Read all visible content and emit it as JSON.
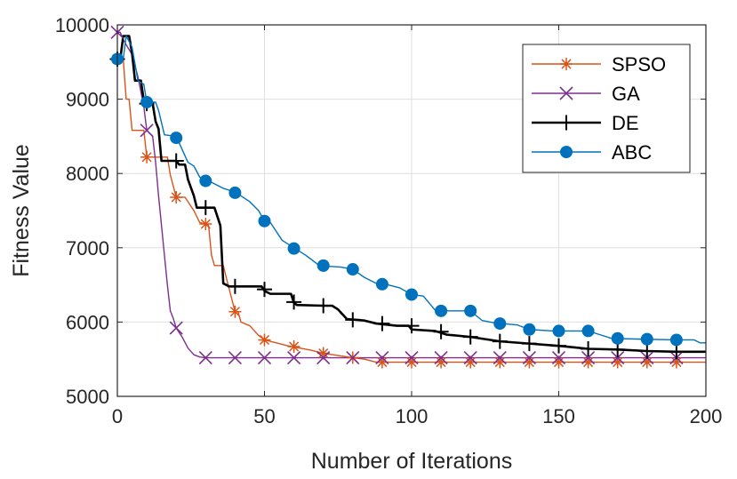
{
  "chart_data": {
    "type": "line",
    "title": "",
    "xlabel": "Number of Iterations",
    "ylabel": "Fitness Value",
    "xlim": [
      0,
      200
    ],
    "ylim": [
      5000,
      10000
    ],
    "xticks": [
      0,
      50,
      100,
      150,
      200
    ],
    "yticks": [
      5000,
      6000,
      7000,
      8000,
      9000,
      10000
    ],
    "xtick_labels": [
      "0",
      "50",
      "100",
      "150",
      "200"
    ],
    "ytick_labels": [
      "5000",
      "6000",
      "7000",
      "8000",
      "9000",
      "10000"
    ],
    "grid": true,
    "legend_position": "top-right",
    "series": [
      {
        "name": "SPSO",
        "color": "#D95319",
        "marker": "asterisk",
        "line": [
          [
            0,
            9540
          ],
          [
            2,
            9540
          ],
          [
            3,
            9000
          ],
          [
            4,
            9000
          ],
          [
            5,
            8580
          ],
          [
            9,
            8580
          ],
          [
            10,
            8220
          ],
          [
            17,
            8220
          ],
          [
            18,
            7980
          ],
          [
            20,
            7680
          ],
          [
            23,
            7680
          ],
          [
            26,
            7500
          ],
          [
            28,
            7340
          ],
          [
            30,
            7320
          ],
          [
            31,
            7300
          ],
          [
            32,
            6900
          ],
          [
            33,
            6760
          ],
          [
            36,
            6760
          ],
          [
            37,
            6600
          ],
          [
            40,
            6140
          ],
          [
            41,
            6140
          ],
          [
            42,
            6000
          ],
          [
            45,
            5950
          ],
          [
            48,
            5820
          ],
          [
            50,
            5760
          ],
          [
            54,
            5720
          ],
          [
            58,
            5680
          ],
          [
            62,
            5650
          ],
          [
            66,
            5620
          ],
          [
            70,
            5580
          ],
          [
            75,
            5550
          ],
          [
            80,
            5520
          ],
          [
            84,
            5500
          ],
          [
            88,
            5460
          ],
          [
            200,
            5460
          ]
        ],
        "markers": [
          [
            0,
            9540
          ],
          [
            10,
            8220
          ],
          [
            20,
            7680
          ],
          [
            30,
            7320
          ],
          [
            40,
            6140
          ],
          [
            50,
            5760
          ],
          [
            60,
            5670
          ],
          [
            70,
            5580
          ],
          [
            80,
            5520
          ],
          [
            90,
            5460
          ],
          [
            100,
            5460
          ],
          [
            110,
            5460
          ],
          [
            120,
            5460
          ],
          [
            130,
            5460
          ],
          [
            140,
            5460
          ],
          [
            150,
            5460
          ],
          [
            160,
            5460
          ],
          [
            170,
            5460
          ],
          [
            180,
            5460
          ],
          [
            190,
            5460
          ]
        ]
      },
      {
        "name": "GA",
        "color": "#7E2F8E",
        "marker": "cross",
        "line": [
          [
            0,
            9900
          ],
          [
            1,
            9900
          ],
          [
            2,
            9800
          ],
          [
            5,
            9600
          ],
          [
            7,
            9300
          ],
          [
            9,
            8900
          ],
          [
            10,
            8580
          ],
          [
            12,
            8500
          ],
          [
            13,
            8150
          ],
          [
            14,
            7700
          ],
          [
            15,
            7300
          ],
          [
            16,
            6900
          ],
          [
            17,
            6500
          ],
          [
            18,
            6150
          ],
          [
            19,
            6050
          ],
          [
            20,
            5920
          ],
          [
            22,
            5800
          ],
          [
            24,
            5650
          ],
          [
            26,
            5560
          ],
          [
            28,
            5530
          ],
          [
            30,
            5520
          ],
          [
            200,
            5520
          ]
        ],
        "markers": [
          [
            0,
            9900
          ],
          [
            10,
            8580
          ],
          [
            20,
            5920
          ],
          [
            30,
            5520
          ],
          [
            40,
            5520
          ],
          [
            50,
            5520
          ],
          [
            60,
            5520
          ],
          [
            70,
            5520
          ],
          [
            80,
            5520
          ],
          [
            90,
            5520
          ],
          [
            100,
            5520
          ],
          [
            110,
            5520
          ],
          [
            120,
            5520
          ],
          [
            130,
            5520
          ],
          [
            140,
            5520
          ],
          [
            150,
            5520
          ],
          [
            160,
            5520
          ],
          [
            170,
            5520
          ],
          [
            180,
            5520
          ],
          [
            190,
            5520
          ]
        ]
      },
      {
        "name": "DE",
        "color": "#000000",
        "marker": "plus",
        "line": [
          [
            0,
            9540
          ],
          [
            1,
            9540
          ],
          [
            2,
            9850
          ],
          [
            4,
            9850
          ],
          [
            5,
            9620
          ],
          [
            6,
            9250
          ],
          [
            8,
            9250
          ],
          [
            9,
            8980
          ],
          [
            10,
            8940
          ],
          [
            12,
            8940
          ],
          [
            13,
            8700
          ],
          [
            14,
            8600
          ],
          [
            15,
            8170
          ],
          [
            20,
            8170
          ],
          [
            21,
            8120
          ],
          [
            23,
            8120
          ],
          [
            24,
            7920
          ],
          [
            26,
            7700
          ],
          [
            27,
            7540
          ],
          [
            33,
            7540
          ],
          [
            34,
            7420
          ],
          [
            35,
            7300
          ],
          [
            36,
            6520
          ],
          [
            38,
            6480
          ],
          [
            49,
            6480
          ],
          [
            50,
            6420
          ],
          [
            52,
            6380
          ],
          [
            59,
            6380
          ],
          [
            60,
            6260
          ],
          [
            61,
            6230
          ],
          [
            70,
            6220
          ],
          [
            73,
            6220
          ],
          [
            75,
            6170
          ],
          [
            78,
            6040
          ],
          [
            84,
            6020
          ],
          [
            88,
            5980
          ],
          [
            95,
            5950
          ],
          [
            99,
            5950
          ],
          [
            100,
            5900
          ],
          [
            108,
            5880
          ],
          [
            112,
            5830
          ],
          [
            120,
            5800
          ],
          [
            125,
            5770
          ],
          [
            130,
            5740
          ],
          [
            140,
            5710
          ],
          [
            150,
            5680
          ],
          [
            155,
            5660
          ],
          [
            160,
            5640
          ],
          [
            170,
            5630
          ],
          [
            180,
            5610
          ],
          [
            190,
            5600
          ],
          [
            200,
            5600
          ]
        ],
        "markers": [
          [
            0,
            9540
          ],
          [
            10,
            8940
          ],
          [
            20,
            8170
          ],
          [
            30,
            7540
          ],
          [
            40,
            6480
          ],
          [
            50,
            6440
          ],
          [
            60,
            6270
          ],
          [
            70,
            6220
          ],
          [
            80,
            6030
          ],
          [
            90,
            5980
          ],
          [
            100,
            5950
          ],
          [
            110,
            5870
          ],
          [
            120,
            5800
          ],
          [
            130,
            5740
          ],
          [
            140,
            5710
          ],
          [
            150,
            5680
          ],
          [
            160,
            5640
          ],
          [
            170,
            5630
          ],
          [
            180,
            5610
          ],
          [
            190,
            5600
          ]
        ]
      },
      {
        "name": "ABC",
        "color": "#0072BD",
        "marker": "circle",
        "line": [
          [
            0,
            9540
          ],
          [
            2,
            9540
          ],
          [
            3,
            9850
          ],
          [
            5,
            9700
          ],
          [
            7,
            9250
          ],
          [
            9,
            9200
          ],
          [
            10,
            8960
          ],
          [
            13,
            8960
          ],
          [
            14,
            8850
          ],
          [
            16,
            8520
          ],
          [
            20,
            8500
          ],
          [
            24,
            8150
          ],
          [
            26,
            8100
          ],
          [
            28,
            7950
          ],
          [
            30,
            7920
          ],
          [
            36,
            7800
          ],
          [
            40,
            7750
          ],
          [
            45,
            7620
          ],
          [
            48,
            7500
          ],
          [
            50,
            7360
          ],
          [
            52,
            7340
          ],
          [
            56,
            7100
          ],
          [
            60,
            7000
          ],
          [
            64,
            6900
          ],
          [
            68,
            6780
          ],
          [
            72,
            6750
          ],
          [
            76,
            6740
          ],
          [
            80,
            6710
          ],
          [
            84,
            6600
          ],
          [
            88,
            6520
          ],
          [
            92,
            6500
          ],
          [
            96,
            6460
          ],
          [
            100,
            6370
          ],
          [
            104,
            6350
          ],
          [
            108,
            6160
          ],
          [
            112,
            6150
          ],
          [
            120,
            6150
          ],
          [
            124,
            6020
          ],
          [
            128,
            5990
          ],
          [
            136,
            5960
          ],
          [
            140,
            5900
          ],
          [
            148,
            5880
          ],
          [
            156,
            5880
          ],
          [
            160,
            5880
          ],
          [
            164,
            5830
          ],
          [
            168,
            5780
          ],
          [
            178,
            5770
          ],
          [
            190,
            5760
          ],
          [
            196,
            5760
          ],
          [
            198,
            5720
          ],
          [
            200,
            5720
          ]
        ],
        "markers": [
          [
            0,
            9540
          ],
          [
            10,
            8960
          ],
          [
            20,
            8480
          ],
          [
            30,
            7900
          ],
          [
            40,
            7740
          ],
          [
            50,
            7360
          ],
          [
            60,
            6990
          ],
          [
            70,
            6760
          ],
          [
            80,
            6710
          ],
          [
            90,
            6510
          ],
          [
            100,
            6370
          ],
          [
            110,
            6150
          ],
          [
            120,
            6150
          ],
          [
            130,
            5980
          ],
          [
            140,
            5900
          ],
          [
            150,
            5880
          ],
          [
            160,
            5880
          ],
          [
            170,
            5780
          ],
          [
            180,
            5770
          ],
          [
            190,
            5760
          ]
        ]
      }
    ]
  }
}
